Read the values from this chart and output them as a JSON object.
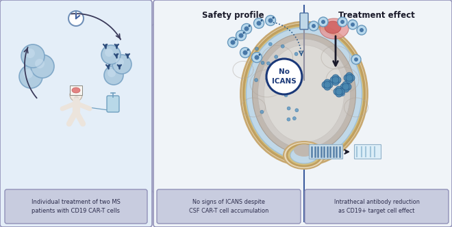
{
  "bg_color": "#ffffff",
  "panel1_bg": "#e4eef8",
  "panel_border_color": "#9090b8",
  "divider_color": "#3a5a9c",
  "title1": "Safety profile",
  "title2": "Treatment effect",
  "caption1": "Individual treatment of two MS\npatients with CD19 CAR-T cells",
  "caption2": "No signs of ICANS despite\nCSF CAR-T cell accumulation",
  "caption3": "Intrathecal antibody reduction\nas CD19+ target cell effect",
  "no_icans_text": "No\nICANS",
  "cell_blue_light": "#a8cce0",
  "cell_blue_mid": "#6098c0",
  "cell_blue_dark": "#1a3a6a",
  "caption_box_color": "#c8ccdf",
  "caption_text_color": "#2a2a4a",
  "arrow_color": "#1a1a2a",
  "skull_color": "#e8d8b8",
  "skull_edge": "#c8a870",
  "dura_color": "#d4c490",
  "csf_color": "#c8dce8",
  "cortex_color": "#c8c0b8",
  "wm_color": "#d8d4d0",
  "wm2_color": "#e0dcd8",
  "sulci_color": "#b0a8a0",
  "lesion_pink": "#e89090",
  "lesion_red": "#cc6060",
  "blot_dark": "#a0b8cc",
  "blot_light": "#c8dce8"
}
